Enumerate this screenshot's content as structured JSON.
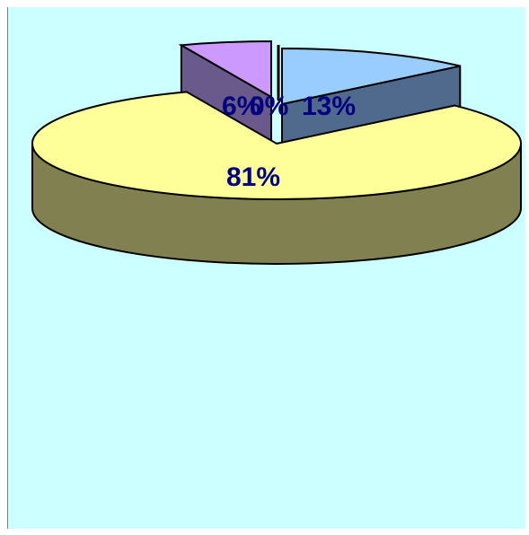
{
  "chart_data": {
    "type": "pie",
    "style": "3d-exploded",
    "categories": [
      "",
      "",
      "",
      ""
    ],
    "values": [
      13,
      81,
      6,
      0
    ],
    "labels": [
      "13%",
      "81%",
      "6%",
      "0%"
    ],
    "colors": [
      "#99ccff",
      "#ffff99",
      "#cc99ff",
      "#ffffff"
    ],
    "side_colors": [
      "#4f6a8c",
      "#808050",
      "#6a5a8c",
      "#808080"
    ],
    "background": "#ccffff",
    "title": "",
    "legend": "none"
  }
}
